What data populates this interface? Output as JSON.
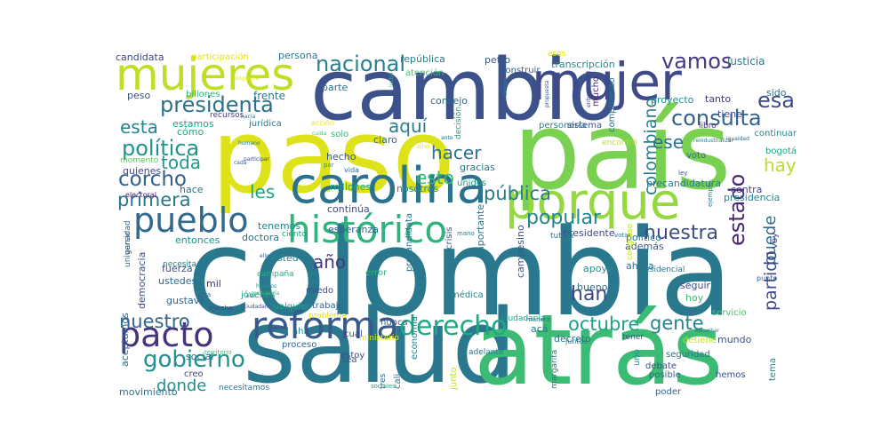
{
  "words": [
    {
      "text": "colombia",
      "color": "#2a788e"
    },
    {
      "text": "salud",
      "color": "#2a788e"
    },
    {
      "text": "atrás",
      "color": "#3cbb75"
    },
    {
      "text": "país",
      "color": "#7ad151"
    },
    {
      "text": "paso",
      "color": "#dde318"
    },
    {
      "text": "cambio",
      "color": "#3b528b"
    },
    {
      "text": "mujeres",
      "color": "#bddf26"
    },
    {
      "text": "mujer",
      "color": "#3e4a89"
    },
    {
      "text": "carolina",
      "color": "#2c728e"
    },
    {
      "text": "porque",
      "color": "#95d840"
    },
    {
      "text": "histórico",
      "color": "#2fb47c"
    },
    {
      "text": "pueblo",
      "color": "#31688e"
    },
    {
      "text": "reforma",
      "color": "#38598c"
    },
    {
      "text": "pacto",
      "color": "#46337e"
    },
    {
      "text": "derecho",
      "color": "#22a785"
    },
    {
      "text": "gobierno",
      "color": "#21918c"
    },
    {
      "text": "nacional",
      "color": "#27808e"
    },
    {
      "text": "vamos",
      "color": "#443983"
    },
    {
      "text": "presidenta",
      "color": "#2d708e"
    },
    {
      "text": "consulta",
      "color": "#33638d"
    },
    {
      "text": "esa",
      "color": "#3e4989"
    },
    {
      "text": "política",
      "color": "#1f968b"
    },
    {
      "text": "esta",
      "color": "#25858e"
    },
    {
      "text": "toda",
      "color": "#1f9a8a"
    },
    {
      "text": "aquí",
      "color": "#287d8e"
    },
    {
      "text": "hacer",
      "color": "#2d718e"
    },
    {
      "text": "corcho",
      "color": "#35608d"
    },
    {
      "text": "primera",
      "color": "#2b758e"
    },
    {
      "text": "les",
      "color": "#20a486"
    },
    {
      "text": "esto",
      "color": "#34b679"
    },
    {
      "text": "pública",
      "color": "#287c8e"
    },
    {
      "text": "popular",
      "color": "#24868e"
    },
    {
      "text": "nuestra",
      "color": "#3d4d8a"
    },
    {
      "text": "hay",
      "color": "#bade28"
    },
    {
      "text": "ese",
      "color": "#2e6f8e"
    },
    {
      "text": "estado",
      "color": "#482475"
    },
    {
      "text": "puede",
      "color": "#30688e"
    },
    {
      "text": "partido",
      "color": "#3f4889"
    },
    {
      "text": "gente",
      "color": "#25838e"
    },
    {
      "text": "octubre",
      "color": "#1fa088"
    },
    {
      "text": "nuestro",
      "color": "#32648e"
    },
    {
      "text": "donde",
      "color": "#21908d"
    },
    {
      "text": "año",
      "color": "#453781"
    },
    {
      "text": "han",
      "color": "#3f4788"
    },
    {
      "text": "colombiano",
      "color": "#277f8e"
    },
    {
      "text": "candidata",
      "color": "#404688"
    },
    {
      "text": "participación",
      "color": "#e2e418"
    },
    {
      "text": "persona",
      "color": "#2a768e"
    },
    {
      "text": "república",
      "color": "#26828e"
    },
    {
      "text": "esos",
      "color": "#dde318"
    },
    {
      "text": "petro",
      "color": "#39568c"
    },
    {
      "text": "transcripción",
      "color": "#24868e"
    },
    {
      "text": "justicia",
      "color": "#2a788e"
    },
    {
      "text": "atención",
      "color": "#3fbc73"
    },
    {
      "text": "construir",
      "color": "#33638d"
    },
    {
      "text": "peso",
      "color": "#3b528b"
    },
    {
      "text": "billones",
      "color": "#2fb47c"
    },
    {
      "text": "frente",
      "color": "#287d8e"
    },
    {
      "text": "parte",
      "color": "#2c728e"
    },
    {
      "text": "consejo",
      "color": "#31688e"
    },
    {
      "text": "mucho",
      "color": "#482878"
    },
    {
      "text": "proyecto",
      "color": "#21918c"
    },
    {
      "text": "tanto",
      "color": "#46327e"
    },
    {
      "text": "sido",
      "color": "#2e6e8e"
    },
    {
      "text": "tiene",
      "color": "#3e4a89"
    },
    {
      "text": "estamos",
      "color": "#1f9e89"
    },
    {
      "text": "recursos",
      "color": "#433e85"
    },
    {
      "text": "jurídica",
      "color": "#2a778e"
    },
    {
      "text": "solo",
      "color": "#35b779"
    },
    {
      "text": "decisión",
      "color": "#1fa188"
    },
    {
      "text": "compromiso",
      "color": "#2c738e"
    },
    {
      "text": "personería",
      "color": "#27808e"
    },
    {
      "text": "sistema",
      "color": "#3b528b"
    },
    {
      "text": "encontró",
      "color": "#b5de2b"
    },
    {
      "text": "libro",
      "color": "#472d7b"
    },
    {
      "text": "continuar",
      "color": "#25858e"
    },
    {
      "text": "bogotá",
      "color": "#20a386"
    },
    {
      "text": "cómo",
      "color": "#22a884"
    },
    {
      "text": "momento",
      "color": "#5ec962"
    },
    {
      "text": "quienes",
      "color": "#3f4889"
    },
    {
      "text": "hace",
      "color": "#2d708e"
    },
    {
      "text": "electoral",
      "color": "#482173"
    },
    {
      "text": "claro",
      "color": "#31678e"
    },
    {
      "text": "hecho",
      "color": "#38588c"
    },
    {
      "text": "millones",
      "color": "#22a785"
    },
    {
      "text": "nosotros",
      "color": "#23898e"
    },
    {
      "text": "unidos",
      "color": "#1e9b8a"
    },
    {
      "text": "gracias",
      "color": "#2a768e"
    },
    {
      "text": "voto",
      "color": "#34608d"
    },
    {
      "text": "contra",
      "color": "#404588"
    },
    {
      "text": "presidencia",
      "color": "#24868e"
    },
    {
      "text": "precandidatura",
      "color": "#2a788e"
    },
    {
      "text": "continúa",
      "color": "#3e4c8a"
    },
    {
      "text": "tenemos",
      "color": "#25848e"
    },
    {
      "text": "entonces",
      "color": "#21918c"
    },
    {
      "text": "doctora",
      "color": "#2c718e"
    },
    {
      "text": "ciento",
      "color": "#1f9e89"
    },
    {
      "text": "esperanza",
      "color": "#33628d"
    },
    {
      "text": "presidente",
      "color": "#3f4788"
    },
    {
      "text": "además",
      "color": "#38598c"
    },
    {
      "text": "tutela",
      "color": "#2a778e"
    },
    {
      "text": "ganar",
      "color": "#35608d"
    },
    {
      "text": "universidad",
      "color": "#2d718e"
    },
    {
      "text": "fuerza",
      "color": "#3a548c"
    },
    {
      "text": "mil",
      "color": "#472c7a"
    },
    {
      "text": "usted",
      "color": "#26818e"
    },
    {
      "text": "necesita",
      "color": "#287c8e"
    },
    {
      "text": "ustedes",
      "color": "#2f6b8e"
    },
    {
      "text": "gustavo",
      "color": "#32658e"
    },
    {
      "text": "democracia",
      "color": "#3d4e8a"
    },
    {
      "text": "campaña",
      "color": "#27ad81"
    },
    {
      "text": "jóvenes",
      "color": "#1fa187"
    },
    {
      "text": "error",
      "color": "#2fb47c"
    },
    {
      "text": "miedo",
      "color": "#3e4a89"
    },
    {
      "text": "médica",
      "color": "#25848e"
    },
    {
      "text": "trabajo",
      "color": "#33638d"
    },
    {
      "text": "precandidata",
      "color": "#2b758e"
    },
    {
      "text": "crisis",
      "color": "#38588c"
    },
    {
      "text": "importante",
      "color": "#2a768e"
    },
    {
      "text": "campesino",
      "color": "#3a548c"
    },
    {
      "text": "bueno",
      "color": "#2e6e8e"
    },
    {
      "text": "apoyo",
      "color": "#21918c"
    },
    {
      "text": "ahora",
      "color": "#2c718e"
    },
    {
      "text": "político",
      "color": "#2a778e"
    },
    {
      "text": "congreso",
      "color": "#c8e020"
    },
    {
      "text": "hoy",
      "color": "#3cbb75"
    },
    {
      "text": "seguir",
      "color": "#3e4c8a"
    },
    {
      "text": "voy",
      "color": "#3b528b"
    },
    {
      "text": "presidencial",
      "color": "#2a788e"
    },
    {
      "text": "problema",
      "color": "#dae319"
    },
    {
      "text": "ministerio",
      "color": "#e5e419"
    },
    {
      "text": "nunca",
      "color": "#33638d"
    },
    {
      "text": "ciudadanía",
      "color": "#1fa188"
    },
    {
      "text": "manera",
      "color": "#2c718e"
    },
    {
      "text": "servicio",
      "color": "#4ac16d"
    },
    {
      "text": "punto",
      "color": "#35608d"
    },
    {
      "text": "cualquier",
      "color": "#1f9e89"
    },
    {
      "text": "ahí",
      "color": "#25848e"
    },
    {
      "text": "cual",
      "color": "#3f4889"
    },
    {
      "text": "estoy",
      "color": "#3e4989"
    },
    {
      "text": "acá",
      "color": "#2b758e"
    },
    {
      "text": "decreto",
      "color": "#2a768e"
    },
    {
      "text": "tener",
      "color": "#3a548c"
    },
    {
      "text": "detiene",
      "color": "#c2df23"
    },
    {
      "text": "mundo",
      "color": "#39568c"
    },
    {
      "text": "social",
      "color": "#2c718e"
    },
    {
      "text": "proceso",
      "color": "#31688e"
    },
    {
      "text": "sea",
      "color": "#3b528b"
    },
    {
      "text": "cali",
      "color": "#2d708e"
    },
    {
      "text": "economía",
      "color": "#25848e"
    },
    {
      "text": "junto",
      "color": "#c0df25"
    },
    {
      "text": "adelante",
      "color": "#2a788e"
    },
    {
      "text": "uno",
      "color": "#21918c"
    },
    {
      "text": "seguridad",
      "color": "#2c728e"
    },
    {
      "text": "debate",
      "color": "#3e4c8a"
    },
    {
      "text": "posible",
      "color": "#33638d"
    },
    {
      "text": "hemos",
      "color": "#3b528b"
    },
    {
      "text": "poder",
      "color": "#35608d"
    },
    {
      "text": "tema",
      "color": "#25858e"
    },
    {
      "text": "margarita",
      "color": "#2a768e"
    },
    {
      "text": "aceptamos",
      "color": "#2f6b8e"
    },
    {
      "text": "movimiento",
      "color": "#2d708e"
    },
    {
      "text": "creo",
      "color": "#3e4989"
    },
    {
      "text": "necesitamos",
      "color": "#2a788e"
    },
    {
      "text": "tres",
      "color": "#31688e"
    },
    {
      "text": "sociales",
      "color": "#22a785"
    },
    {
      "text": "territorio",
      "color": "#3fbc73"
    },
    {
      "text": "juntos",
      "color": "#2a778e"
    },
    {
      "text": "otra",
      "color": "#33638d"
    },
    {
      "text": "marcha",
      "color": "#3e4a89"
    },
    {
      "text": "sino",
      "color": "#e8e419"
    },
    {
      "text": "par",
      "color": "#21918c"
    },
    {
      "text": "ley",
      "color": "#3b528b"
    },
    {
      "text": "mano",
      "color": "#287c8e"
    },
    {
      "text": "votar",
      "color": "#2a788e"
    },
    {
      "text": "ejemplo",
      "color": "#24868e"
    },
    {
      "text": "programa",
      "color": "#e2e418"
    },
    {
      "text": "lucha",
      "color": "#35b779"
    },
    {
      "text": "hacia",
      "color": "#2d718e"
    },
    {
      "text": "cuida",
      "color": "#3fbc73"
    },
    {
      "text": "humano",
      "color": "#2a768e"
    },
    {
      "text": "participar",
      "color": "#3e4a89"
    },
    {
      "text": "cada",
      "color": "#33638d"
    },
    {
      "text": "tiempo",
      "color": "#25848e"
    },
    {
      "text": "ante",
      "color": "#2c718e"
    },
    {
      "text": "entregar",
      "color": "#3b528b"
    },
    {
      "text": "propuesta",
      "color": "#35608d"
    },
    {
      "text": "reindustrializar",
      "color": "#2a788e"
    },
    {
      "text": "igualdad",
      "color": "#31688e"
    },
    {
      "text": "hicimos",
      "color": "#21918c"
    },
    {
      "text": "contraloría",
      "color": "#3fbc73"
    },
    {
      "text": "ciudadano",
      "color": "#3e4c8a"
    },
    {
      "text": "escuchar",
      "color": "#2a778e"
    },
    {
      "text": "ello",
      "color": "#33638d"
    },
    {
      "text": "era",
      "color": "#25848e"
    },
    {
      "text": "acción",
      "color": "#e2e418"
    },
    {
      "text": "vida",
      "color": "#2d708e"
    }
  ]
}
